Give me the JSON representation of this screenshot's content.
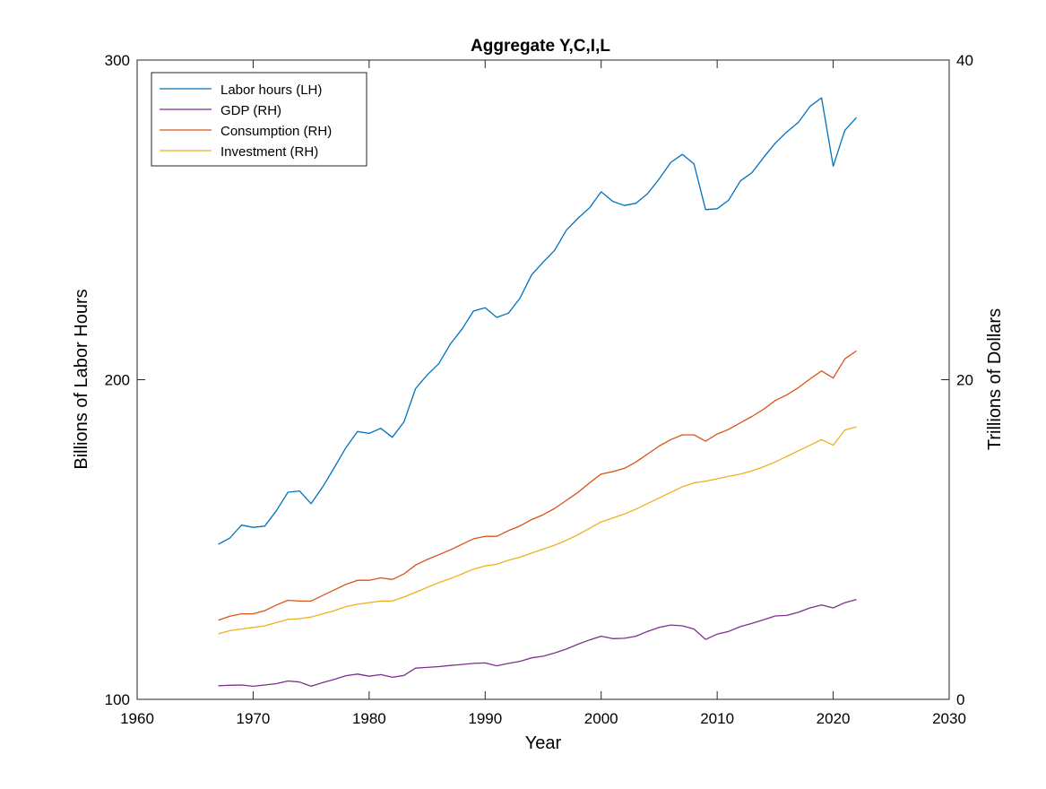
{
  "chart_data": {
    "type": "line",
    "title": "Aggregate Y,C,I,L",
    "xlabel": "Year",
    "ylabel_left": "Billions of Labor Hours",
    "ylabel_right": "Trillions of Dollars",
    "xlim": [
      1960,
      2030
    ],
    "ylim_left": [
      100,
      300
    ],
    "ylim_right": [
      0,
      40
    ],
    "xticks": [
      1960,
      1970,
      1980,
      1990,
      2000,
      2010,
      2020,
      2030
    ],
    "yticks_left": [
      100,
      200,
      300
    ],
    "yticks_right": [
      0,
      20,
      40
    ],
    "grid": false,
    "legend_position": "top-left",
    "legend": [
      "Labor hours (LH)",
      "GDP (RH)",
      "Consumption (RH)",
      "Investment (RH)"
    ],
    "x": [
      1967,
      1968,
      1969,
      1970,
      1971,
      1972,
      1973,
      1974,
      1975,
      1976,
      1977,
      1978,
      1979,
      1980,
      1981,
      1982,
      1983,
      1984,
      1985,
      1986,
      1987,
      1988,
      1989,
      1990,
      1991,
      1992,
      1993,
      1994,
      1995,
      1996,
      1997,
      1998,
      1999,
      2000,
      2001,
      2002,
      2003,
      2004,
      2005,
      2006,
      2007,
      2008,
      2009,
      2010,
      2011,
      2012,
      2013,
      2014,
      2015,
      2016,
      2017,
      2018,
      2019,
      2020,
      2021,
      2022
    ],
    "series": [
      {
        "name": "Labor hours (LH)",
        "axis": "left",
        "color": "#0072BD",
        "values": [
          148.5,
          150.5,
          154.5,
          153.8,
          154.2,
          159.0,
          164.8,
          165.2,
          161.2,
          166.5,
          172.5,
          178.8,
          183.8,
          183.2,
          184.8,
          182.0,
          186.8,
          197.2,
          201.5,
          205.0,
          211.2,
          215.8,
          221.5,
          222.5,
          219.5,
          220.8,
          225.5,
          232.8,
          236.8,
          240.5,
          246.8,
          250.5,
          253.8,
          258.8,
          255.8,
          254.5,
          255.2,
          258.2,
          262.8,
          268.0,
          270.5,
          267.5,
          253.2,
          253.5,
          256.2,
          262.2,
          264.8,
          269.5,
          274.0,
          277.5,
          280.5,
          285.5,
          288.2,
          266.8,
          278.0,
          282.0
        ]
      },
      {
        "name": "GDP (RH)",
        "axis": "right",
        "color": "#7E2F8E",
        "values": [
          0.85,
          0.88,
          0.9,
          0.82,
          0.9,
          0.98,
          1.15,
          1.08,
          0.82,
          1.05,
          1.25,
          1.48,
          1.58,
          1.45,
          1.55,
          1.38,
          1.5,
          1.95,
          2.0,
          2.05,
          2.12,
          2.18,
          2.25,
          2.28,
          2.1,
          2.25,
          2.38,
          2.6,
          2.7,
          2.9,
          3.15,
          3.45,
          3.72,
          3.95,
          3.8,
          3.82,
          3.95,
          4.25,
          4.5,
          4.65,
          4.6,
          4.4,
          3.75,
          4.08,
          4.25,
          4.55,
          4.75,
          4.98,
          5.22,
          5.25,
          5.45,
          5.72,
          5.9,
          5.72,
          6.05,
          6.25
        ]
      },
      {
        "name": "Consumption (RH)",
        "axis": "right",
        "color": "#D95319",
        "values": [
          4.95,
          5.2,
          5.35,
          5.35,
          5.55,
          5.9,
          6.2,
          6.15,
          6.15,
          6.5,
          6.85,
          7.2,
          7.45,
          7.45,
          7.6,
          7.5,
          7.85,
          8.4,
          8.75,
          9.05,
          9.35,
          9.7,
          10.05,
          10.2,
          10.2,
          10.55,
          10.85,
          11.25,
          11.55,
          11.95,
          12.45,
          12.95,
          13.55,
          14.1,
          14.25,
          14.45,
          14.85,
          15.35,
          15.85,
          16.25,
          16.55,
          16.55,
          16.15,
          16.6,
          16.9,
          17.3,
          17.7,
          18.15,
          18.7,
          19.05,
          19.5,
          20.05,
          20.55,
          20.1,
          21.3,
          21.8
        ]
      },
      {
        "name": "Investment (RH)",
        "axis": "right",
        "color": "#EDB120",
        "values": [
          4.1,
          4.3,
          4.4,
          4.5,
          4.6,
          4.8,
          5.0,
          5.05,
          5.15,
          5.35,
          5.55,
          5.8,
          5.95,
          6.05,
          6.15,
          6.15,
          6.4,
          6.7,
          7.0,
          7.3,
          7.55,
          7.85,
          8.15,
          8.35,
          8.45,
          8.7,
          8.9,
          9.15,
          9.4,
          9.65,
          9.95,
          10.3,
          10.7,
          11.1,
          11.35,
          11.6,
          11.9,
          12.25,
          12.6,
          12.95,
          13.3,
          13.55,
          13.65,
          13.8,
          13.95,
          14.1,
          14.3,
          14.55,
          14.85,
          15.2,
          15.55,
          15.9,
          16.25,
          15.9,
          16.85,
          17.05
        ]
      }
    ]
  }
}
